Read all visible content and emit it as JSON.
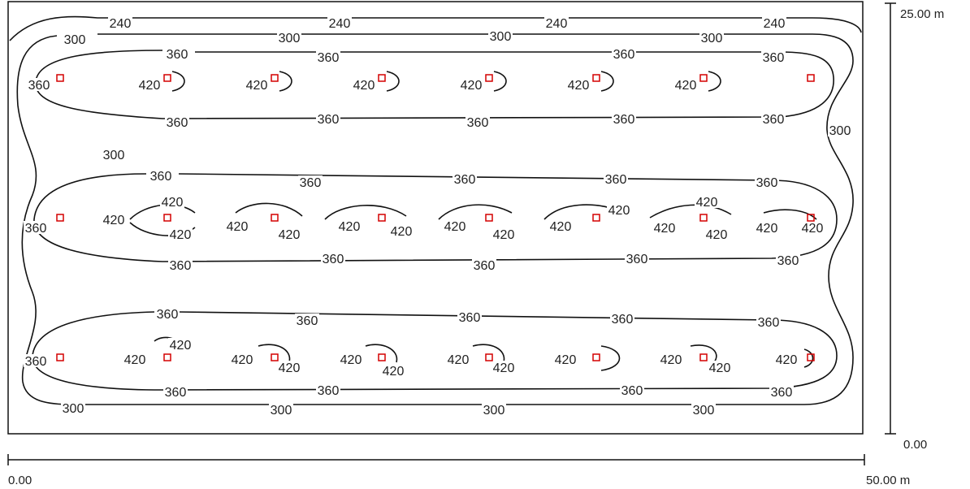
{
  "plot": {
    "x_axis": {
      "min_label": "0.00",
      "max_label": "50.00 m"
    },
    "y_axis": {
      "min_label": "0.00",
      "max_label": "25.00 m"
    }
  },
  "colors": {
    "contour": "#111111",
    "luminaire": "#d40000",
    "frame": "#111111"
  },
  "contour_levels": [
    "240",
    "300",
    "360",
    "420"
  ]
}
